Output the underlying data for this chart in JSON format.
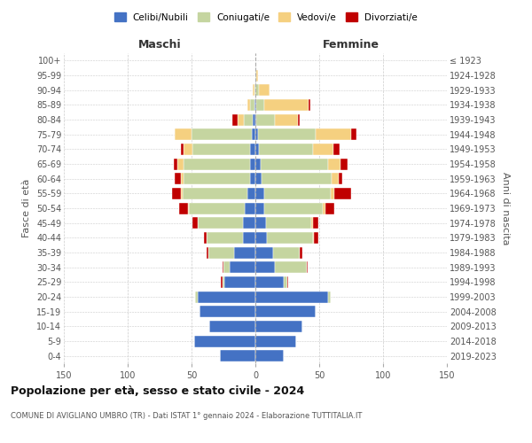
{
  "age_groups": [
    "0-4",
    "5-9",
    "10-14",
    "15-19",
    "20-24",
    "25-29",
    "30-34",
    "35-39",
    "40-44",
    "45-49",
    "50-54",
    "55-59",
    "60-64",
    "65-69",
    "70-74",
    "75-79",
    "80-84",
    "85-89",
    "90-94",
    "95-99",
    "100+"
  ],
  "birth_years": [
    "2019-2023",
    "2014-2018",
    "2009-2013",
    "2004-2008",
    "1999-2003",
    "1994-1998",
    "1989-1993",
    "1984-1988",
    "1979-1983",
    "1974-1978",
    "1969-1973",
    "1964-1968",
    "1959-1963",
    "1954-1958",
    "1949-1953",
    "1944-1948",
    "1939-1943",
    "1934-1938",
    "1929-1933",
    "1924-1928",
    "≤ 1923"
  ],
  "maschi": {
    "celibi": [
      28,
      48,
      36,
      44,
      45,
      24,
      20,
      17,
      10,
      10,
      8,
      6,
      4,
      4,
      4,
      3,
      2,
      1,
      0,
      0,
      0
    ],
    "coniugati": [
      0,
      0,
      0,
      0,
      2,
      2,
      5,
      20,
      28,
      35,
      44,
      51,
      52,
      52,
      45,
      47,
      7,
      3,
      1,
      0,
      0
    ],
    "vedovi": [
      0,
      0,
      0,
      0,
      0,
      0,
      0,
      0,
      0,
      0,
      1,
      1,
      2,
      5,
      7,
      13,
      5,
      2,
      1,
      0,
      0
    ],
    "divorziati": [
      0,
      0,
      0,
      0,
      0,
      1,
      1,
      1,
      2,
      4,
      7,
      7,
      5,
      3,
      2,
      0,
      4,
      0,
      0,
      0,
      0
    ]
  },
  "femmine": {
    "nubili": [
      22,
      32,
      37,
      47,
      57,
      22,
      15,
      14,
      9,
      8,
      7,
      7,
      5,
      4,
      3,
      2,
      1,
      1,
      0,
      0,
      0
    ],
    "coniugate": [
      0,
      0,
      0,
      0,
      2,
      3,
      25,
      21,
      36,
      36,
      46,
      52,
      55,
      53,
      42,
      45,
      14,
      6,
      3,
      1,
      0
    ],
    "vedove": [
      0,
      0,
      0,
      0,
      0,
      0,
      0,
      0,
      1,
      1,
      2,
      3,
      5,
      10,
      16,
      28,
      18,
      35,
      8,
      1,
      0
    ],
    "divorziate": [
      0,
      0,
      0,
      0,
      0,
      1,
      1,
      2,
      3,
      4,
      7,
      13,
      3,
      5,
      5,
      4,
      2,
      1,
      0,
      0,
      0
    ]
  },
  "colors": {
    "celibi": "#4472c4",
    "coniugati": "#c5d5a0",
    "vedovi": "#f5d080",
    "divorziati": "#c00000"
  },
  "legend_labels": [
    "Celibi/Nubili",
    "Coniugati/e",
    "Vedovi/e",
    "Divorziati/e"
  ],
  "title": "Popolazione per età, sesso e stato civile - 2024",
  "subtitle": "COMUNE DI AVIGLIANO UMBRO (TR) - Dati ISTAT 1° gennaio 2024 - Elaborazione TUTTITALIA.IT",
  "xlabel_left": "Maschi",
  "xlabel_right": "Femmine",
  "ylabel_left": "Fasce di età",
  "ylabel_right": "Anni di nascita",
  "xlim": 150,
  "bg_color": "#ffffff",
  "grid_color": "#cccccc"
}
